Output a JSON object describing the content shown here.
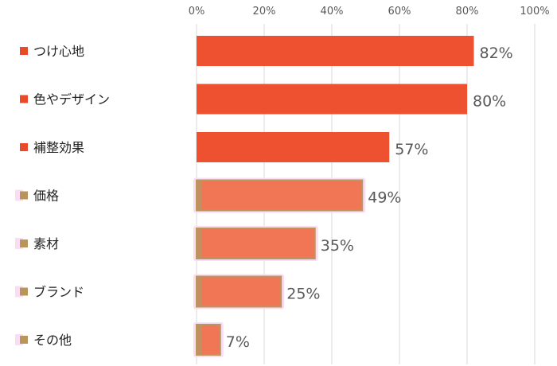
{
  "chart_data": {
    "type": "bar",
    "orientation": "horizontal",
    "categories": [
      "つけ心地",
      "色やデザイン",
      "補整効果",
      "価格",
      "素材",
      "ブランド",
      "その他"
    ],
    "values": [
      82,
      80,
      57,
      49,
      35,
      25,
      7
    ],
    "data_labels": [
      "82%",
      "80%",
      "57%",
      "49%",
      "35%",
      "25%",
      "7%"
    ],
    "x_ticks": [
      "0%",
      "20%",
      "40%",
      "60%",
      "80%",
      "100%"
    ],
    "xlim": [
      0,
      100
    ],
    "x_axis_position": "top",
    "grid": true,
    "title": "",
    "xlabel": "",
    "ylabel": "",
    "colors": {
      "primary_bar": "#EE5130",
      "secondary_bar": "#F07656",
      "secondary_outline": "#B89860",
      "primary_marker": "#E94B2A",
      "secondary_marker": "#B8955A",
      "gridline": "#D9D9D9",
      "highlight_glow": "#FBDDF3"
    },
    "highlighted_count": 3
  }
}
